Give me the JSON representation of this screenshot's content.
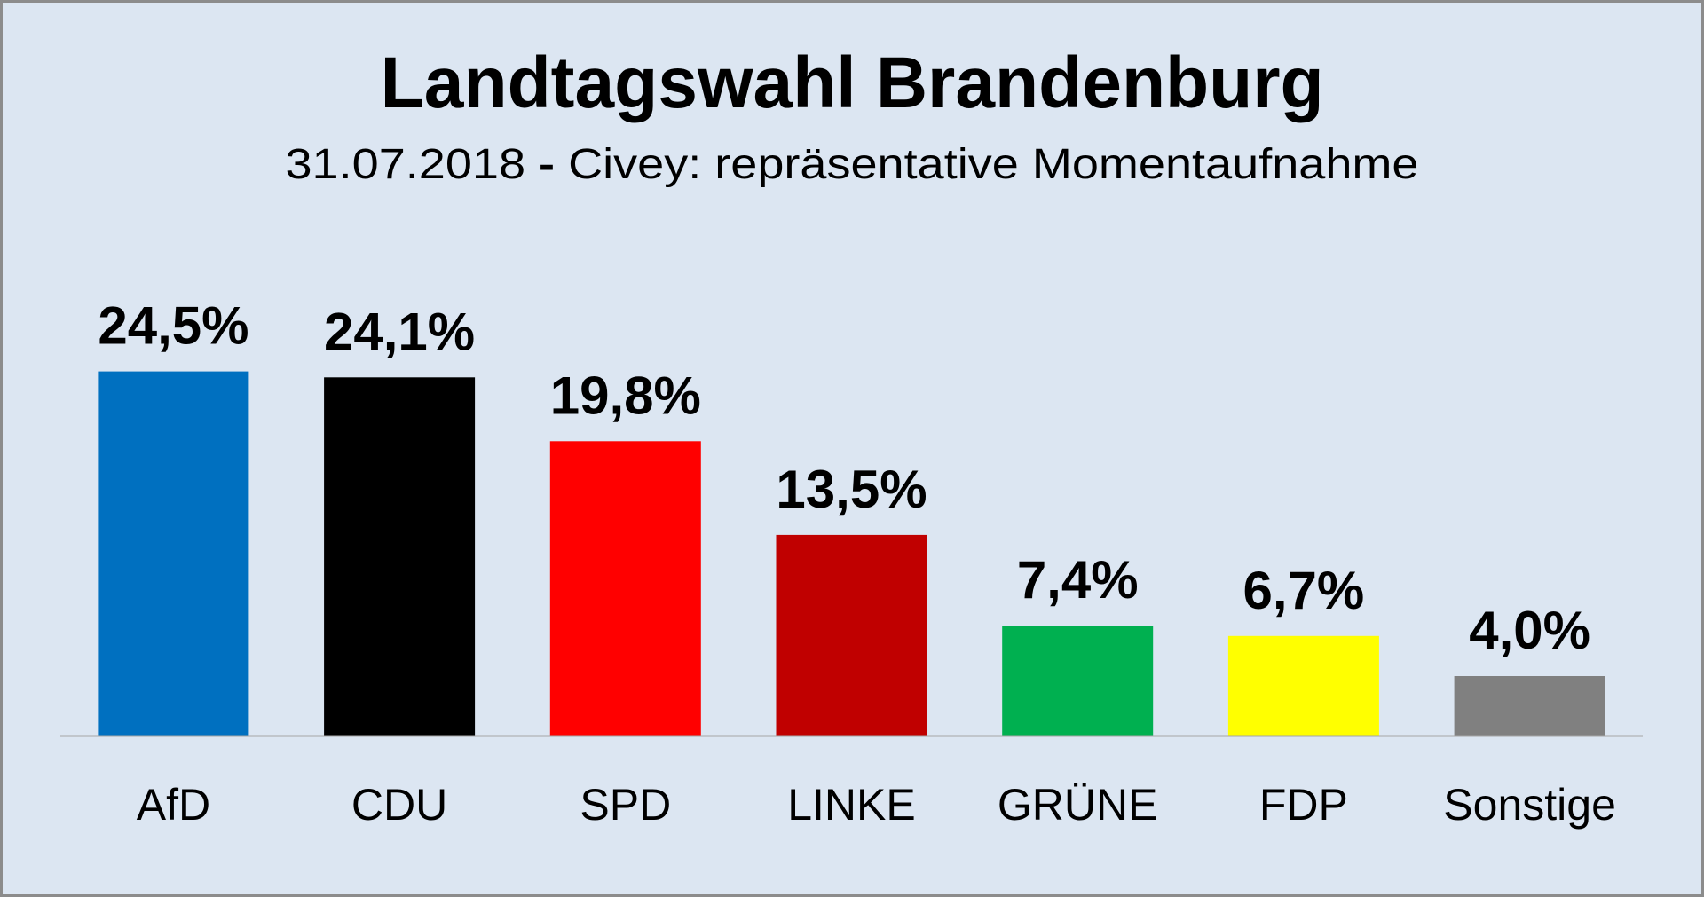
{
  "chart_data": {
    "type": "bar",
    "title": "Landtagswahl Brandenburg",
    "subtitle": {
      "date": "31.07.2018",
      "separator": "-",
      "source": "Civey: repräsentative Momentaufnahme"
    },
    "categories": [
      "AfD",
      "CDU",
      "SPD",
      "LINKE",
      "GRÜNE",
      "FDP",
      "Sonstige"
    ],
    "values": [
      24.5,
      24.1,
      19.8,
      13.5,
      7.4,
      6.7,
      4.0
    ],
    "value_labels": [
      "24,5%",
      "24,1%",
      "19,8%",
      "13,5%",
      "7,4%",
      "6,7%",
      "4,0%"
    ],
    "colors": [
      "#0070c0",
      "#000000",
      "#ff0000",
      "#c00000",
      "#00b050",
      "#ffff00",
      "#808080"
    ],
    "xlabel": "",
    "ylabel": "",
    "ylim": [
      0,
      30
    ],
    "grid": false,
    "legend": "none",
    "background": "#dce6f2",
    "axis_color": "#a6a6a6"
  }
}
